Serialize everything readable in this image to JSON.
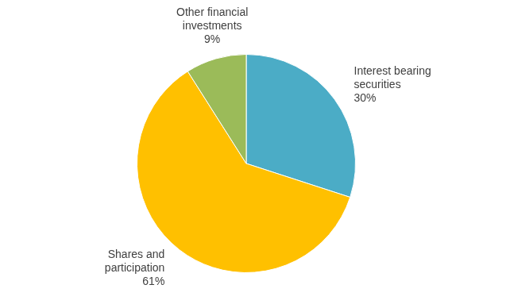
{
  "chart_data": {
    "type": "pie",
    "categories": [
      "Interest bearing securities",
      "Shares and participation",
      "Other financial investments"
    ],
    "values": [
      30,
      61,
      9
    ],
    "value_labels": [
      "30%",
      "61%",
      "9%"
    ],
    "colors": [
      "#4bacc6",
      "#ffc000",
      "#9bbb59"
    ],
    "data_labels": true
  }
}
